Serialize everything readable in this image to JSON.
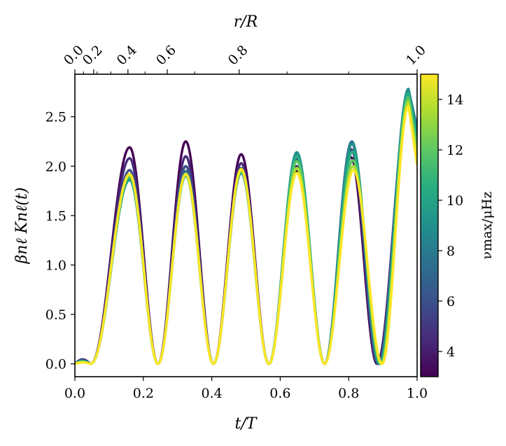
{
  "chart_data": {
    "type": "line",
    "title": "",
    "xlabel": "t/T",
    "ylabel": "βnℓ Knℓ(t)",
    "top_xlabel": "r/R",
    "xlim": [
      0.0,
      1.0
    ],
    "ylim": [
      -0.13,
      2.93
    ],
    "x_ticks": [
      "0.0",
      "0.2",
      "0.4",
      "0.6",
      "0.8",
      "1.0"
    ],
    "y_ticks": [
      "0.0",
      "0.5",
      "1.0",
      "1.5",
      "2.0",
      "2.5"
    ],
    "top_ticks": [
      {
        "label": "0.0",
        "t": 0.0
      },
      {
        "label": "0.2",
        "t": 0.055
      },
      {
        "label": "0.4",
        "t": 0.155
      },
      {
        "label": "0.6",
        "t": 0.27
      },
      {
        "label": "0.8",
        "t": 0.48
      },
      {
        "label": "1.0",
        "t": 1.0
      }
    ],
    "top_minor_ticks_t": [
      0.025,
      0.065,
      0.105,
      0.205,
      0.35,
      0.62,
      0.8
    ],
    "colorbar": {
      "label": "νmax/μHz",
      "range": [
        3.0,
        15.0
      ],
      "ticks": [
        "4",
        "6",
        "8",
        "10",
        "12",
        "14"
      ],
      "colormap": "viridis"
    },
    "series_nu_max": [
      3.0,
      4.5,
      6.0,
      7.5,
      9.0,
      10.5,
      12.0,
      13.5,
      15.0
    ],
    "peak_t": [
      0.16,
      0.325,
      0.487,
      0.648,
      0.812
    ],
    "zero_t": [
      0.243,
      0.405,
      0.567,
      0.73
    ],
    "series": [
      {
        "nu_max": 3.0,
        "peaks": [
          2.19,
          2.25,
          2.12,
          1.95,
          2.09
        ],
        "color": "#440154"
      },
      {
        "nu_max": 4.5,
        "peaks": [
          2.08,
          2.1,
          2.03,
          2.0,
          2.17
        ],
        "color": "#472c7a"
      },
      {
        "nu_max": 6.0,
        "peaks": [
          1.96,
          2.0,
          1.98,
          2.07,
          2.24
        ],
        "color": "#3b518b"
      },
      {
        "nu_max": 7.5,
        "peaks": [
          1.9,
          1.95,
          1.95,
          2.13,
          2.25
        ],
        "color": "#2c718e"
      },
      {
        "nu_max": 9.0,
        "peaks": [
          1.86,
          1.91,
          1.93,
          2.14,
          2.23
        ],
        "color": "#21908d"
      },
      {
        "nu_max": 10.5,
        "peaks": [
          1.88,
          1.9,
          1.94,
          2.1,
          2.15
        ],
        "color": "#27ad81"
      },
      {
        "nu_max": 12.0,
        "peaks": [
          1.9,
          1.91,
          1.95,
          2.05,
          2.06
        ],
        "color": "#5cc863"
      },
      {
        "nu_max": 13.5,
        "peaks": [
          1.91,
          1.92,
          1.96,
          1.98,
          2.0
        ],
        "color": "#aadc32"
      },
      {
        "nu_max": 15.0,
        "peaks": [
          1.92,
          1.92,
          1.97,
          1.93,
          1.96
        ],
        "color": "#fde725"
      }
    ]
  }
}
